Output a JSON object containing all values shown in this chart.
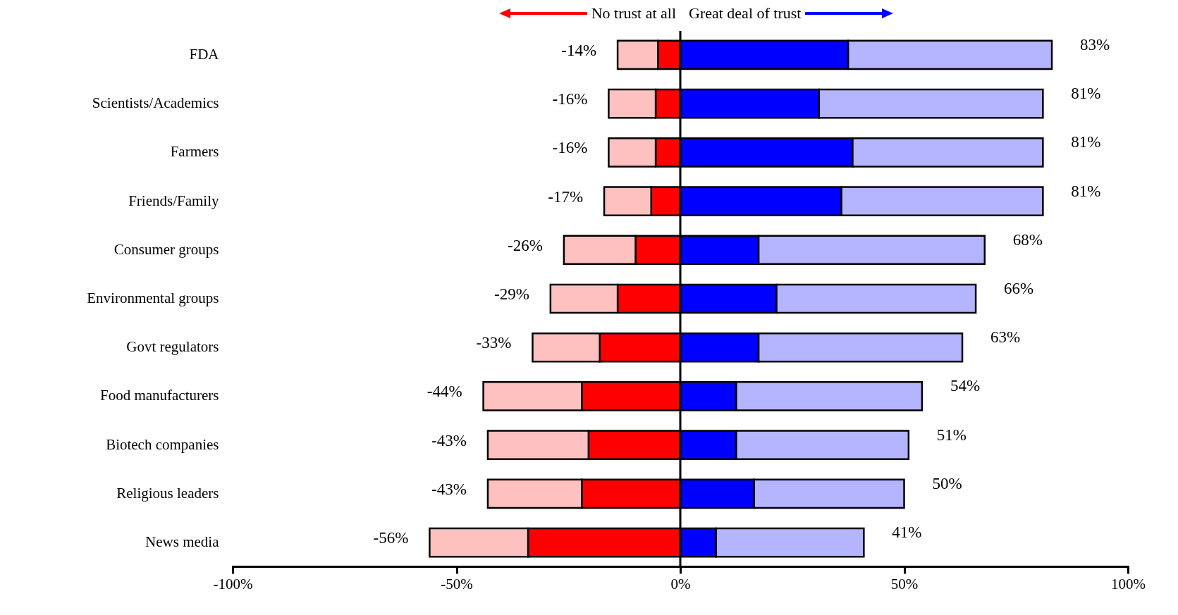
{
  "chart_data": {
    "type": "bar",
    "orientation": "horizontal",
    "stacked": true,
    "categories": [
      "FDA",
      "Scientists/Academics",
      "Farmers",
      "Friends/Family",
      "Consumer groups",
      "Environmental groups",
      "Govt regulators",
      "Food manufacturers",
      "Biotech companies",
      "Religious leaders",
      "News media"
    ],
    "series": [
      {
        "color": "#ff0000",
        "values": [
          -5,
          -5.5,
          -5.5,
          -6.5,
          -10,
          -14,
          -18,
          -22,
          -20.5,
          -22,
          -34
        ]
      },
      {
        "color": "#ffc0c0",
        "values": [
          -9,
          -10.5,
          -10.5,
          -10.5,
          -16,
          -15,
          -15,
          -22,
          -22.5,
          -21,
          -22
        ]
      },
      {
        "color": "#0000ff",
        "values": [
          37.5,
          31,
          38.5,
          36,
          17.5,
          21.5,
          17.5,
          12.5,
          12.5,
          16.5,
          8
        ]
      },
      {
        "color": "#b4b4ff",
        "values": [
          45.5,
          50,
          42.5,
          45,
          50.5,
          44.5,
          45.5,
          41.5,
          38.5,
          33.5,
          33
        ]
      }
    ],
    "xlim": [
      -100,
      100
    ],
    "xticks": [
      {
        "value": -100,
        "label": "-100%"
      },
      {
        "value": -50,
        "label": "-50%"
      },
      {
        "value": 0,
        "label": "0%"
      },
      {
        "value": 50,
        "label": "50%"
      },
      {
        "value": 100,
        "label": "100%"
      }
    ],
    "annotations": [
      "No trust at all",
      "Great deal of trust",
      {
        "text": "-14%",
        "x": -14,
        "y": "FDA"
      },
      {
        "text": "83%",
        "x": 83,
        "y": "FDA"
      },
      {
        "text": "-16%",
        "x": -16,
        "y": "Scientists/Academics"
      },
      {
        "text": "81%",
        "x": 81,
        "y": "Scientists/Academics"
      },
      {
        "text": "-16%",
        "x": -16,
        "y": "Farmers"
      },
      {
        "text": "81%",
        "x": 81,
        "y": "Farmers"
      },
      {
        "text": "-17%",
        "x": -17,
        "y": "Friends/Family"
      },
      {
        "text": "81%",
        "x": 81,
        "y": "Friends/Family"
      },
      {
        "text": "-26%",
        "x": -26,
        "y": "Consumer groups"
      },
      {
        "text": "68%",
        "x": 68,
        "y": "Consumer groups"
      },
      {
        "text": "-29%",
        "x": -29,
        "y": "Environmental groups"
      },
      {
        "text": "66%",
        "x": 66,
        "y": "Environmental groups"
      },
      {
        "text": "-33%",
        "x": -33,
        "y": "Govt regulators"
      },
      {
        "text": "63%",
        "x": 63,
        "y": "Govt regulators"
      },
      {
        "text": "-44%",
        "x": -44,
        "y": "Food manufacturers"
      },
      {
        "text": "54%",
        "x": 54,
        "y": "Food manufacturers"
      },
      {
        "text": "-43%",
        "x": -43,
        "y": "Biotech companies"
      },
      {
        "text": "51%",
        "x": 51,
        "y": "Biotech companies"
      },
      {
        "text": "-43%",
        "x": -43,
        "y": "Religious leaders"
      },
      {
        "text": "50%",
        "x": 50,
        "y": "Religious leaders"
      },
      {
        "text": "-56%",
        "x": -56,
        "y": "News media"
      },
      {
        "text": "41%",
        "x": 41,
        "y": "News media"
      }
    ]
  }
}
